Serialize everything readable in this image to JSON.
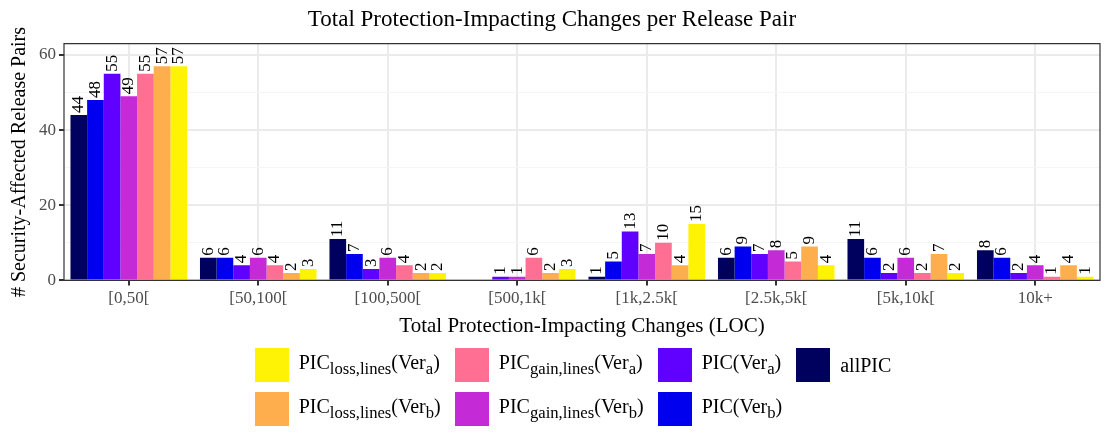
{
  "chart_data": {
    "type": "bar",
    "title": "Total Protection-Impacting Changes per Release Pair",
    "xlabel": "Total Protection-Impacting Changes (LOC)",
    "ylabel": "# Security-Affected Release Pairs",
    "categories": [
      "[0,50[",
      "[50,100[",
      "[100,500[",
      "[500,1k[",
      "[1k,2.5k[",
      "[2.5k,5k[",
      "[5k,10k[",
      "10k+"
    ],
    "series": [
      {
        "name": "allPIC",
        "color": "#00005e",
        "values": [
          44,
          6,
          11,
          null,
          1,
          6,
          11,
          8
        ]
      },
      {
        "name": "PIC(Ver$_{b}$)",
        "color": "#0000ee",
        "values": [
          48,
          6,
          7,
          null,
          5,
          9,
          6,
          6
        ]
      },
      {
        "name": "PIC(Ver$_{a}$)",
        "color": "#6000ff",
        "values": [
          55,
          4,
          3,
          1,
          13,
          7,
          2,
          2
        ]
      },
      {
        "name": "PIC$_{gain,lines}$(Ver$_{b}$)",
        "color": "#c42bd6",
        "values": [
          49,
          6,
          6,
          1,
          7,
          8,
          6,
          4
        ]
      },
      {
        "name": "PIC$_{gain,lines}$(Ver$_{a}$)",
        "color": "#ff6e93",
        "values": [
          55,
          4,
          4,
          6,
          10,
          5,
          2,
          1
        ]
      },
      {
        "name": "PIC$_{loss,lines}$(Ver$_{b}$)",
        "color": "#ffae4e",
        "values": [
          57,
          2,
          2,
          2,
          4,
          9,
          7,
          4
        ]
      },
      {
        "name": "PIC$_{loss,lines}$(Ver$_{a}$)",
        "color": "#fff305",
        "values": [
          57,
          3,
          2,
          3,
          15,
          4,
          2,
          1
        ]
      }
    ],
    "ylim": [
      0,
      63
    ],
    "yticks": [
      0,
      {
        "value": 10,
        "label": null
      },
      20,
      {
        "value": 30,
        "label": null
      },
      40,
      {
        "value": 50,
        "label": null
      },
      60
    ],
    "grid": true,
    "legend": "bottom",
    "data_labels": true
  }
}
